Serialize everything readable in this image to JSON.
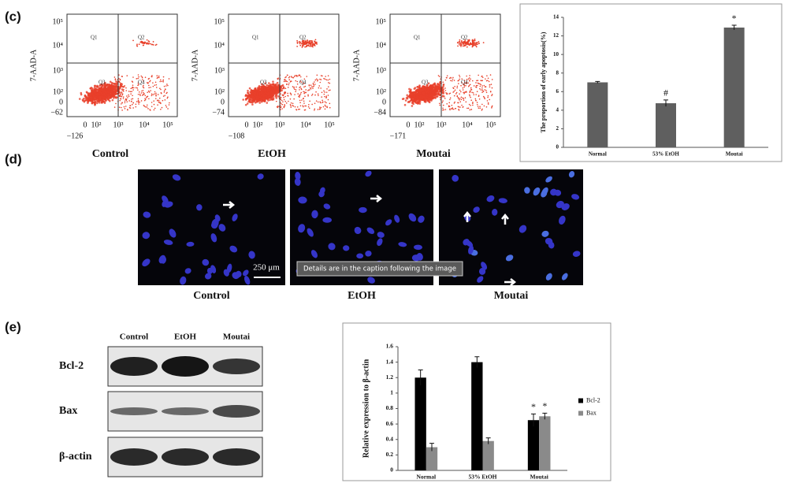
{
  "panel_labels": [
    "(c)",
    "(d)",
    "(e)"
  ],
  "flow": {
    "y_label": "7-AAD-A",
    "quadrants": [
      "Q1",
      "Q2",
      "Q3",
      "Q4"
    ],
    "plots": [
      {
        "name": "Control",
        "yticks": [
          "10⁵",
          "10⁴",
          "10³",
          "10²",
          "0",
          "−62"
        ],
        "xticks": [
          "0",
          "10²",
          "10³",
          "10⁴",
          "10⁵"
        ],
        "x_min": "−126"
      },
      {
        "name": "EtOH",
        "yticks": [
          "10⁵",
          "10⁴",
          "10³",
          "10²",
          "0",
          "−74"
        ],
        "xticks": [
          "0",
          "10²",
          "10³",
          "10⁴",
          "10⁵"
        ],
        "x_min": "−108"
      },
      {
        "name": "Moutai",
        "yticks": [
          "10⁵",
          "10⁴",
          "10³",
          "10²",
          "0",
          "−84"
        ],
        "xticks": [
          "0",
          "10²",
          "10³",
          "10⁴",
          "10⁵"
        ],
        "x_min": "−171"
      }
    ]
  },
  "microscopy": {
    "labels": [
      "Control",
      "EtOH",
      "Moutai"
    ],
    "scale_bar": "250 μm",
    "tooltip": "Details are in the caption following the image"
  },
  "blot": {
    "columns": [
      "Control",
      "EtOH",
      "Moutai"
    ],
    "rows": [
      "Bcl-2",
      "Bax",
      "β-actin"
    ]
  },
  "chart_data": [
    {
      "type": "bar",
      "y_label": "The proportion of early apoptosis(%)",
      "categories": [
        "Normal",
        "53% EtOH",
        "Moutai"
      ],
      "series": [
        {
          "name": "apoptosis",
          "color": "#5f5f5f",
          "values": [
            7.0,
            4.75,
            12.9
          ],
          "errors": [
            0.1,
            0.35,
            0.25
          ]
        }
      ],
      "ylim": [
        0,
        14
      ],
      "yticks": [
        0,
        2,
        4,
        6,
        8,
        10,
        12,
        14
      ],
      "grid": false,
      "legend": false,
      "annotations": [
        {
          "text": "#",
          "x": "53% EtOH",
          "series": "apoptosis"
        },
        {
          "text": "*",
          "x": "Moutai",
          "series": "apoptosis"
        }
      ]
    },
    {
      "type": "bar",
      "y_label": "Relative expression to β-actin",
      "categories": [
        "Normal",
        "53% EtOH",
        "Moutai"
      ],
      "series": [
        {
          "name": "Bcl-2",
          "color": "#000000",
          "values": [
            1.2,
            1.4,
            0.65
          ],
          "errors": [
            0.1,
            0.07,
            0.08
          ]
        },
        {
          "name": "Bax",
          "color": "#8a8a8a",
          "values": [
            0.3,
            0.38,
            0.7
          ],
          "errors": [
            0.05,
            0.04,
            0.04
          ]
        }
      ],
      "ylim": [
        0,
        1.6
      ],
      "yticks": [
        0,
        0.2,
        0.4,
        0.6,
        0.8,
        1,
        1.2,
        1.4,
        1.6
      ],
      "grid": false,
      "legend": "right",
      "annotations": [
        {
          "text": "*",
          "x": "Moutai",
          "series": "Bcl-2"
        },
        {
          "text": "*",
          "x": "Moutai",
          "series": "Bax"
        }
      ]
    }
  ]
}
